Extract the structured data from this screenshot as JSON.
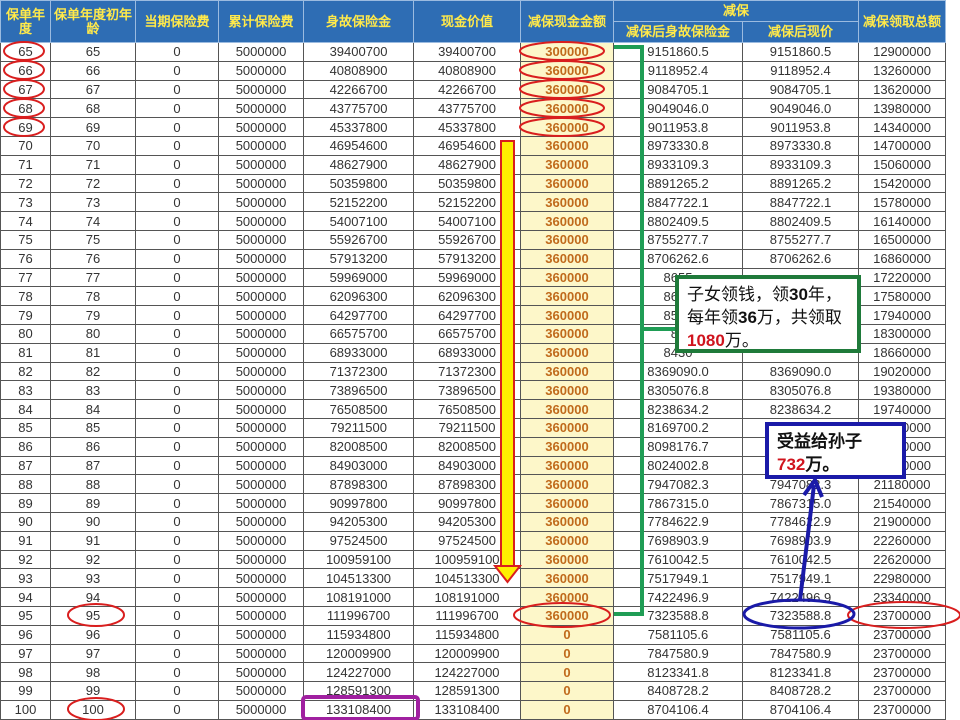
{
  "headers": {
    "h0": "保单年度",
    "h1": "保单年度初年龄",
    "h2": "当期保险费",
    "h3": "累计保险费",
    "h4": "身故保险金",
    "h5": "现金价值",
    "h6": "减保现金金额",
    "group": "减保",
    "h7": "减保后身故保险金",
    "h8": "减保后现价",
    "h9": "减保领取总额"
  },
  "rows": [
    [
      "65",
      "65",
      "0",
      "5000000",
      "39400700",
      "39400700",
      "300000",
      "9151860.5",
      "9151860.5",
      "12900000"
    ],
    [
      "66",
      "66",
      "0",
      "5000000",
      "40808900",
      "40808900",
      "360000",
      "9118952.4",
      "9118952.4",
      "13260000"
    ],
    [
      "67",
      "67",
      "0",
      "5000000",
      "42266700",
      "42266700",
      "360000",
      "9084705.1",
      "9084705.1",
      "13620000"
    ],
    [
      "68",
      "68",
      "0",
      "5000000",
      "43775700",
      "43775700",
      "360000",
      "9049046.0",
      "9049046.0",
      "13980000"
    ],
    [
      "69",
      "69",
      "0",
      "5000000",
      "45337800",
      "45337800",
      "360000",
      "9011953.8",
      "9011953.8",
      "14340000"
    ],
    [
      "70",
      "70",
      "0",
      "5000000",
      "46954600",
      "46954600",
      "360000",
      "8973330.8",
      "8973330.8",
      "14700000"
    ],
    [
      "71",
      "71",
      "0",
      "5000000",
      "48627900",
      "48627900",
      "360000",
      "8933109.3",
      "8933109.3",
      "15060000"
    ],
    [
      "72",
      "72",
      "0",
      "5000000",
      "50359800",
      "50359800",
      "360000",
      "8891265.2",
      "8891265.2",
      "15420000"
    ],
    [
      "73",
      "73",
      "0",
      "5000000",
      "52152200",
      "52152200",
      "360000",
      "8847722.1",
      "8847722.1",
      "15780000"
    ],
    [
      "74",
      "74",
      "0",
      "5000000",
      "54007100",
      "54007100",
      "360000",
      "8802409.5",
      "8802409.5",
      "16140000"
    ],
    [
      "75",
      "75",
      "0",
      "5000000",
      "55926700",
      "55926700",
      "360000",
      "8755277.7",
      "8755277.7",
      "16500000"
    ],
    [
      "76",
      "76",
      "0",
      "5000000",
      "57913200",
      "57913200",
      "360000",
      "8706262.6",
      "8706262.6",
      "16860000"
    ],
    [
      "77",
      "77",
      "0",
      "5000000",
      "59969000",
      "59969000",
      "360000",
      "8655",
      "",
      "17220000"
    ],
    [
      "78",
      "78",
      "0",
      "5000000",
      "62096300",
      "62096300",
      "360000",
      "8602",
      "",
      "17580000"
    ],
    [
      "79",
      "79",
      "0",
      "5000000",
      "64297700",
      "64297700",
      "360000",
      "8547",
      "",
      "17940000"
    ],
    [
      "80",
      "80",
      "0",
      "5000000",
      "66575700",
      "66575700",
      "360000",
      "84",
      "",
      "18300000"
    ],
    [
      "81",
      "81",
      "0",
      "5000000",
      "68933000",
      "68933000",
      "360000",
      "8430",
      "",
      "18660000"
    ],
    [
      "82",
      "82",
      "0",
      "5000000",
      "71372300",
      "71372300",
      "360000",
      "8369090.0",
      "8369090.0",
      "19020000"
    ],
    [
      "83",
      "83",
      "0",
      "5000000",
      "73896500",
      "73896500",
      "360000",
      "8305076.8",
      "8305076.8",
      "19380000"
    ],
    [
      "84",
      "84",
      "0",
      "5000000",
      "76508500",
      "76508500",
      "360000",
      "8238634.2",
      "8238634.2",
      "19740000"
    ],
    [
      "85",
      "85",
      "0",
      "5000000",
      "79211500",
      "79211500",
      "360000",
      "8169700.2",
      "8169700.2",
      "20100000"
    ],
    [
      "86",
      "86",
      "0",
      "5000000",
      "82008500",
      "82008500",
      "360000",
      "8098176.7",
      "8098176.7",
      "20460000"
    ],
    [
      "87",
      "87",
      "0",
      "5000000",
      "84903000",
      "84903000",
      "360000",
      "8024002.8",
      "8024002.8",
      "20820000"
    ],
    [
      "88",
      "88",
      "0",
      "5000000",
      "87898300",
      "87898300",
      "360000",
      "7947082.3",
      "7947082.3",
      "21180000"
    ],
    [
      "89",
      "89",
      "0",
      "5000000",
      "90997800",
      "90997800",
      "360000",
      "7867315.0",
      "7867315.0",
      "21540000"
    ],
    [
      "90",
      "90",
      "0",
      "5000000",
      "94205300",
      "94205300",
      "360000",
      "7784622.9",
      "7784622.9",
      "21900000"
    ],
    [
      "91",
      "91",
      "0",
      "5000000",
      "97524500",
      "97524500",
      "360000",
      "7698903.9",
      "7698903.9",
      "22260000"
    ],
    [
      "92",
      "92",
      "0",
      "5000000",
      "100959100",
      "100959100",
      "360000",
      "7610042.5",
      "7610042.5",
      "22620000"
    ],
    [
      "93",
      "93",
      "0",
      "5000000",
      "104513300",
      "104513300",
      "360000",
      "7517949.1",
      "7517949.1",
      "22980000"
    ],
    [
      "94",
      "94",
      "0",
      "5000000",
      "108191000",
      "108191000",
      "360000",
      "7422496.9",
      "7422496.9",
      "23340000"
    ],
    [
      "95",
      "95",
      "0",
      "5000000",
      "111996700",
      "111996700",
      "360000",
      "7323588.8",
      "7323588.8",
      "23700000"
    ],
    [
      "96",
      "96",
      "0",
      "5000000",
      "115934800",
      "115934800",
      "0",
      "7581105.6",
      "7581105.6",
      "23700000"
    ],
    [
      "97",
      "97",
      "0",
      "5000000",
      "120009900",
      "120009900",
      "0",
      "7847580.9",
      "7847580.9",
      "23700000"
    ],
    [
      "98",
      "98",
      "0",
      "5000000",
      "124227000",
      "124227000",
      "0",
      "8123341.8",
      "8123341.8",
      "23700000"
    ],
    [
      "99",
      "99",
      "0",
      "5000000",
      "128591300",
      "128591300",
      "0",
      "8408728.2",
      "8408728.2",
      "23700000"
    ],
    [
      "100",
      "100",
      "0",
      "5000000",
      "133108400",
      "133108400",
      "0",
      "8704106.4",
      "8704106.4",
      "23700000"
    ]
  ],
  "callout_children": {
    "t1": "子女领钱，领",
    "n1": "30",
    "t2": "年，每年领",
    "n2": "36",
    "t3": "万，共领取",
    "n3": "1080",
    "t4": "万。"
  },
  "callout_grandchild": {
    "t1": "受益给孙子",
    "n1": "732",
    "t2": "万。"
  },
  "colors": {
    "header_bg": "#2e6db4",
    "header_text": "#ffe94a",
    "highlight_col": "#fdf7c9",
    "circle": "#d91e1e",
    "green": "#1f9d55",
    "blue": "#1a1aa8",
    "purple": "#a020a0"
  }
}
